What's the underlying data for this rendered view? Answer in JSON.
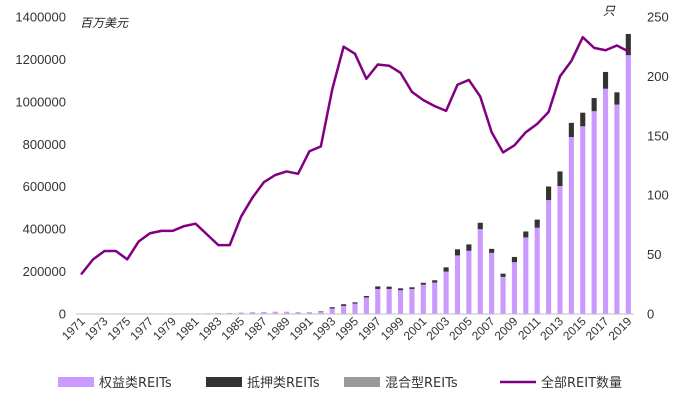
{
  "chart_data": {
    "type": "bar",
    "stacked": true,
    "x": [
      1971,
      1972,
      1973,
      1974,
      1975,
      1976,
      1977,
      1978,
      1979,
      1980,
      1981,
      1982,
      1983,
      1984,
      1985,
      1986,
      1987,
      1988,
      1989,
      1990,
      1991,
      1992,
      1993,
      1994,
      1995,
      1996,
      1997,
      1998,
      1999,
      2000,
      2001,
      2002,
      2003,
      2004,
      2005,
      2006,
      2007,
      2008,
      2009,
      2010,
      2011,
      2012,
      2013,
      2014,
      2015,
      2016,
      2017,
      2018,
      2019
    ],
    "x_tick_labels": [
      "1971",
      "1973",
      "1975",
      "1977",
      "1979",
      "1981",
      "1983",
      "1985",
      "1987",
      "1989",
      "1991",
      "1993",
      "1995",
      "1997",
      "1999",
      "2001",
      "2003",
      "2005",
      "2007",
      "2009",
      "2011",
      "2013",
      "2015",
      "2017",
      "2019"
    ],
    "left_axis": {
      "unit": "百万美元",
      "ylim": [
        0,
        1400000
      ],
      "ticks": [
        "0",
        "200000",
        "400000",
        "600000",
        "800000",
        "1000000",
        "1200000",
        "1400000"
      ]
    },
    "right_axis": {
      "unit": "只",
      "ylim": [
        0,
        250
      ],
      "ticks": [
        "0",
        "50",
        "100",
        "150",
        "200",
        "250"
      ]
    },
    "series": [
      {
        "name": "权益类REITs",
        "kind": "bar",
        "axis": "left",
        "color": "#cc99ff",
        "values": [
          1500,
          1500,
          1500,
          1500,
          1000,
          1200,
          1500,
          1500,
          1800,
          2000,
          2400,
          3300,
          4200,
          5100,
          7000,
          8700,
          9700,
          11000,
          11000,
          9000,
          9000,
          11000,
          26000,
          38000,
          49000,
          78000,
          118000,
          118000,
          112000,
          118000,
          138000,
          148000,
          200000,
          276000,
          298000,
          400000,
          288000,
          175000,
          244000,
          361000,
          407000,
          537000,
          603000,
          834000,
          885000,
          956000,
          1062000,
          987000,
          1220000
        ]
      },
      {
        "name": "抵押类REITs",
        "kind": "bar",
        "axis": "left",
        "color": "#333333",
        "values": [
          0,
          0,
          0,
          0,
          0,
          0,
          0,
          0,
          0,
          0,
          0,
          0,
          0,
          0,
          0,
          0,
          0,
          0,
          0,
          0,
          0,
          1000,
          6000,
          8000,
          6000,
          7000,
          12000,
          11000,
          9000,
          8000,
          9000,
          11000,
          20000,
          29000,
          30000,
          30000,
          19000,
          15000,
          25000,
          28000,
          38000,
          64000,
          69000,
          67000,
          64000,
          62000,
          79000,
          58000,
          100000
        ]
      },
      {
        "name": "混合型REITs",
        "kind": "bar",
        "axis": "left",
        "color": "#999999",
        "values": [
          0,
          0,
          0,
          0,
          0,
          0,
          0,
          0,
          0,
          0,
          0,
          0,
          0,
          0,
          0,
          0,
          0,
          0,
          0,
          0,
          0,
          0,
          0,
          0,
          0,
          0,
          0,
          0,
          0,
          0,
          0,
          0,
          0,
          0,
          0,
          0,
          0,
          0,
          0,
          0,
          0,
          0,
          0,
          0,
          0,
          0,
          0,
          0,
          0
        ]
      },
      {
        "name": "全部REIT数量",
        "kind": "line",
        "axis": "right",
        "color": "#800080",
        "values": [
          34,
          46,
          53,
          53,
          46,
          61,
          68,
          70,
          70,
          74,
          76,
          67,
          58,
          58,
          82,
          98,
          111,
          117,
          120,
          118,
          137,
          141,
          189,
          225,
          219,
          198,
          210,
          209,
          203,
          187,
          180,
          175,
          171,
          193,
          197,
          183,
          153,
          136,
          142,
          153,
          160,
          170,
          200,
          213,
          233,
          224,
          222,
          226,
          221
        ]
      }
    ],
    "legend_position": "bottom",
    "grid": false
  }
}
